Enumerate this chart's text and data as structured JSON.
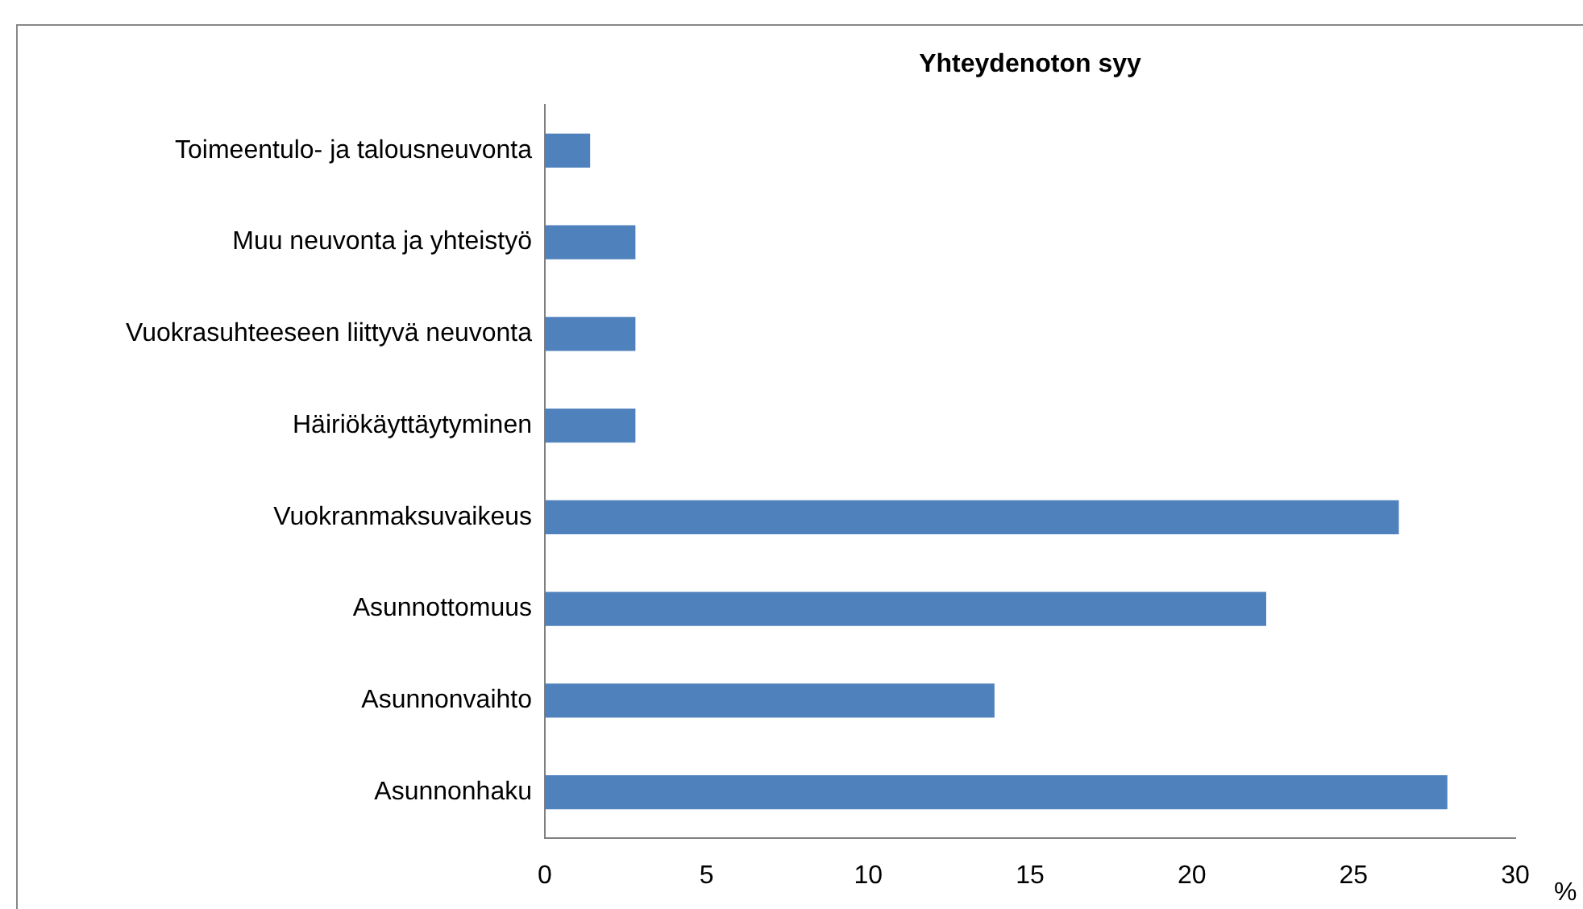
{
  "chart_data": {
    "type": "bar",
    "orientation": "horizontal",
    "title": "Yhteydenoton syy",
    "xlabel": "%",
    "categories": [
      "Toimeentulo- ja talousneuvonta",
      "Muu neuvonta ja yhteistyö",
      "Vuokrasuhteeseen liittyvä neuvonta",
      "Häiriökäyttäytyminen",
      "Vuokranmaksuvaikeus",
      "Asunnottomuus",
      "Asunnonvaihto",
      "Asunnonhaku"
    ],
    "values": [
      1.4,
      2.8,
      2.8,
      2.8,
      26.4,
      22.3,
      13.9,
      27.9
    ],
    "color": "#4f81bd",
    "xlim": [
      0,
      30
    ],
    "xticks": [
      0,
      5,
      10,
      15,
      20,
      25,
      30
    ],
    "grid": false,
    "legend": false
  }
}
